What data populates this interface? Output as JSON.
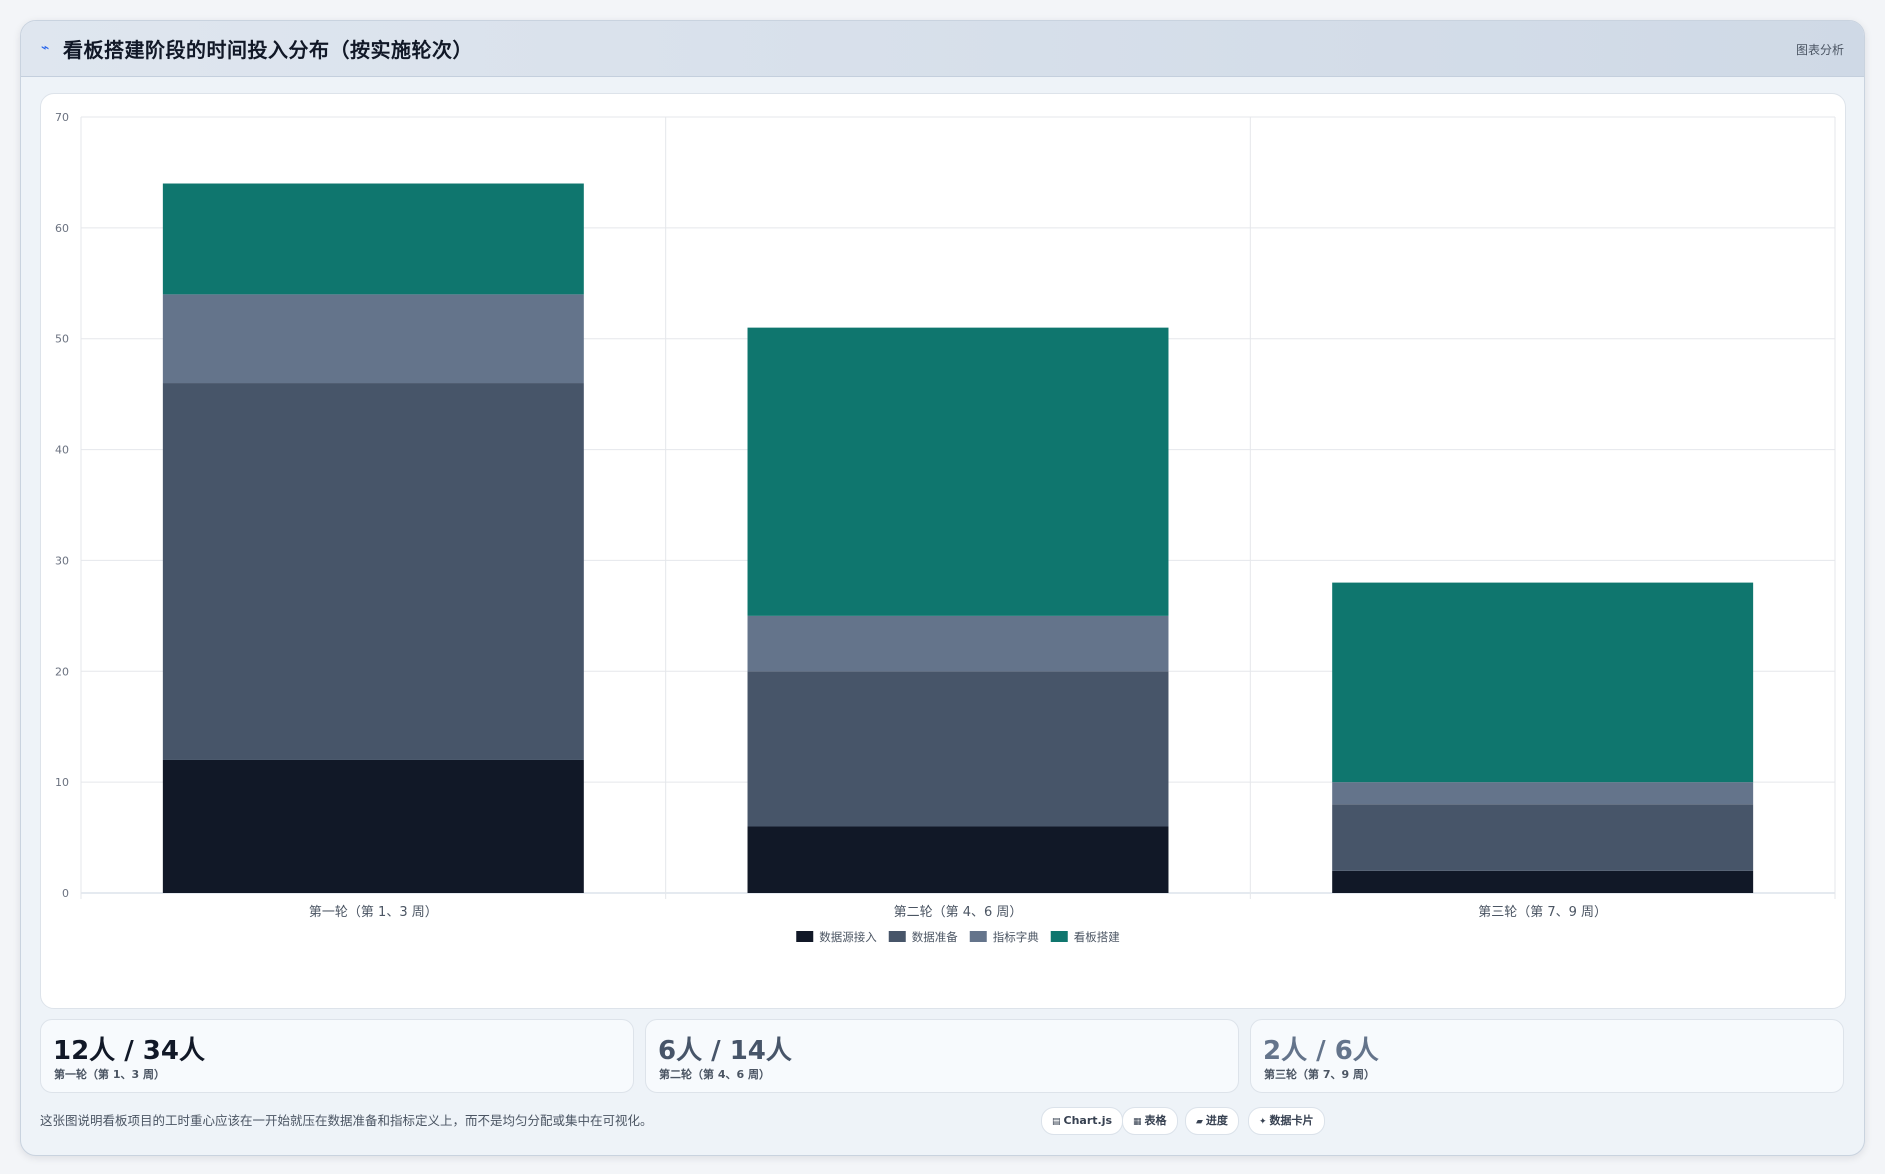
{
  "header": {
    "icon": "chart-line-icon",
    "title": "看板搭建阶段的时间投入分布（按实施轮次）",
    "action_label": "图表分析"
  },
  "colors": {
    "data_source": "#111827",
    "data_prep": "#475569",
    "metric_dict": "#64748b",
    "board_build": "#0f766e"
  },
  "chart_data": {
    "type": "bar",
    "stacked": true,
    "categories": [
      "第一轮（第 1、3 周）",
      "第二轮（第 4、6 周）",
      "第三轮（第 7、9 周）"
    ],
    "series": [
      {
        "name": "数据源接入",
        "values": [
          12,
          6,
          2
        ],
        "color": "#111827"
      },
      {
        "name": "数据准备",
        "values": [
          34,
          14,
          6
        ],
        "color": "#475569"
      },
      {
        "name": "指标字典",
        "values": [
          8,
          5,
          2
        ],
        "color": "#64748b"
      },
      {
        "name": "看板搭建",
        "values": [
          10,
          26,
          18
        ],
        "color": "#0f766e"
      }
    ],
    "ylim": [
      0,
      70
    ],
    "yticks": [
      0,
      10,
      20,
      30,
      40,
      50,
      60,
      70
    ],
    "grid": true,
    "legend": "bottom"
  },
  "stats": [
    {
      "value": "12人 / 34人",
      "label": "第一轮（第 1、3 周）"
    },
    {
      "value": "6人 / 14人",
      "label": "第二轮（第 4、6 周）"
    },
    {
      "value": "2人 / 6人",
      "label": "第三轮（第 7、9 周）"
    }
  ],
  "footer": {
    "note": "这张图说明看板项目的工时重心应该在一开始就压在数据准备和指标定义上，而不是均匀分配或集中在可视化。",
    "chips": [
      {
        "icon": "chart-icon",
        "label": "Chart.js"
      },
      {
        "icon": "table-icon",
        "label": "表格"
      },
      {
        "icon": "progress-icon",
        "label": "进度"
      },
      {
        "icon": "sparkle-icon",
        "label": "数据卡片"
      }
    ]
  }
}
